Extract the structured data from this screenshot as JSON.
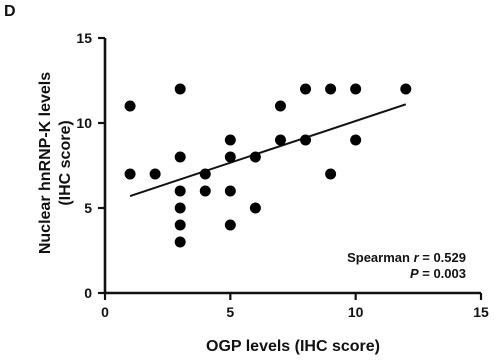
{
  "panel_label": "D",
  "chart_data": {
    "type": "scatter",
    "xlabel": "OGP levels (IHC score)",
    "ylabel_lines": [
      "Nuclear hnRNP-K levels",
      "(IHC score)"
    ],
    "xlim": [
      0,
      15
    ],
    "ylim": [
      0,
      15
    ],
    "x_ticks": [
      0,
      5,
      10,
      15
    ],
    "y_ticks": [
      0,
      5,
      10,
      15
    ],
    "x_tick_labels": [
      "0",
      "5",
      "10",
      "15"
    ],
    "y_tick_labels": [
      "0",
      "5",
      "10",
      "15"
    ],
    "points": [
      {
        "x": 1,
        "y": 11
      },
      {
        "x": 1,
        "y": 7
      },
      {
        "x": 2,
        "y": 7
      },
      {
        "x": 3,
        "y": 12
      },
      {
        "x": 3,
        "y": 8
      },
      {
        "x": 3,
        "y": 6
      },
      {
        "x": 3,
        "y": 5
      },
      {
        "x": 3,
        "y": 4
      },
      {
        "x": 3,
        "y": 3
      },
      {
        "x": 4,
        "y": 7
      },
      {
        "x": 4,
        "y": 6
      },
      {
        "x": 5,
        "y": 9
      },
      {
        "x": 5,
        "y": 8
      },
      {
        "x": 5,
        "y": 6
      },
      {
        "x": 5,
        "y": 4
      },
      {
        "x": 6,
        "y": 8
      },
      {
        "x": 6,
        "y": 5
      },
      {
        "x": 7,
        "y": 11
      },
      {
        "x": 7,
        "y": 9
      },
      {
        "x": 8,
        "y": 12
      },
      {
        "x": 8,
        "y": 9
      },
      {
        "x": 9,
        "y": 12
      },
      {
        "x": 9,
        "y": 7
      },
      {
        "x": 10,
        "y": 12
      },
      {
        "x": 10,
        "y": 9
      },
      {
        "x": 12,
        "y": 12
      }
    ],
    "fit_line": {
      "x": [
        1,
        12
      ],
      "y": [
        5.7,
        11.1
      ]
    },
    "annotation": {
      "line1_prefix": "Spearman ",
      "line1_var": "r",
      "line1_value": " = 0.529",
      "line2_var": "P",
      "line2_value": " = 0.003"
    },
    "grid": false,
    "legend": "none"
  }
}
